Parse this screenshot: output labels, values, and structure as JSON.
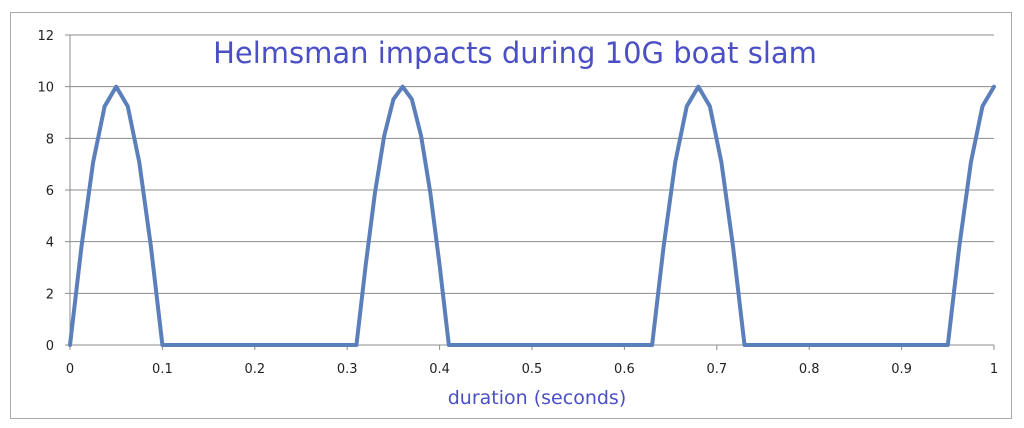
{
  "chart_data": {
    "type": "line",
    "title": "Helmsman impacts during 10G boat slam",
    "xlabel": "duration (seconds)",
    "ylabel": "",
    "xlim": [
      0,
      1
    ],
    "ylim": [
      0,
      12
    ],
    "xticks": [
      "0",
      "0.1",
      "0.2",
      "0.3",
      "0.4",
      "0.5",
      "0.6",
      "0.7",
      "0.8",
      "0.9",
      "1"
    ],
    "yticks": [
      "0",
      "2",
      "4",
      "6",
      "8",
      "10",
      "12"
    ],
    "grid": true,
    "series": [
      {
        "color": "#5b7fba",
        "x": [
          0,
          0.0125,
          0.025,
          0.0375,
          0.05,
          0.0625,
          0.075,
          0.0875,
          0.1,
          0.2,
          0.31,
          0.32,
          0.33,
          0.34,
          0.35,
          0.36,
          0.37,
          0.38,
          0.39,
          0.4,
          0.41,
          0.5,
          0.63,
          0.6425,
          0.655,
          0.6675,
          0.68,
          0.6925,
          0.705,
          0.7175,
          0.73,
          0.85,
          0.95,
          0.9625,
          0.975,
          0.9875,
          1.0
        ],
        "y": [
          0,
          3.83,
          7.07,
          9.24,
          10,
          9.24,
          7.07,
          3.83,
          0,
          0,
          0,
          3.09,
          5.88,
          8.09,
          9.51,
          10,
          9.51,
          8.09,
          5.88,
          3.09,
          0,
          0,
          0,
          3.83,
          7.07,
          9.24,
          10,
          9.24,
          7.07,
          3.83,
          0,
          0,
          0,
          3.83,
          7.07,
          9.24,
          10
        ]
      }
    ]
  }
}
